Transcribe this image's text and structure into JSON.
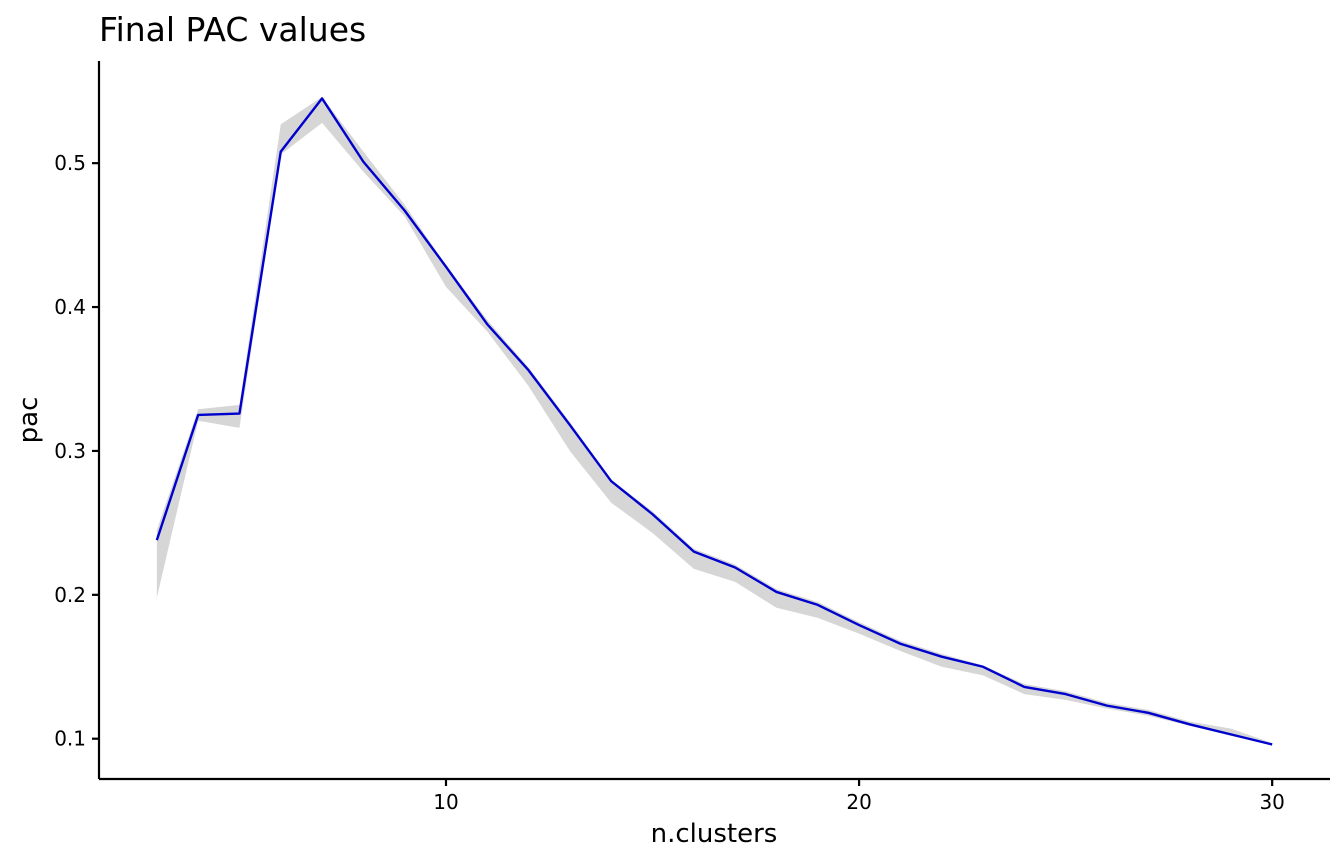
{
  "chart_data": {
    "type": "line",
    "title": "Final PAC values",
    "xlabel": "n.clusters",
    "ylabel": "pac",
    "xlim": [
      1.6,
      31.4
    ],
    "ylim": [
      0.072,
      0.571
    ],
    "x_ticks": [
      10,
      20,
      30
    ],
    "y_ticks": [
      0.1,
      0.2,
      0.3,
      0.4,
      0.5
    ],
    "x_tick_labels": [
      "10",
      "20",
      "30"
    ],
    "y_tick_labels": [
      "0.1",
      "0.2",
      "0.3",
      "0.4",
      "0.5"
    ],
    "grid": false,
    "legend": "none",
    "colors": {
      "line": "#0000cd",
      "ribbon": "#c8c8c8"
    },
    "series": [
      {
        "x": [
          3,
          4,
          5,
          6,
          7,
          8,
          9,
          10,
          11,
          12,
          13,
          14,
          15,
          16,
          17,
          18,
          19,
          20,
          21,
          22,
          23,
          24,
          25,
          26,
          27,
          28,
          29,
          30
        ],
        "y": [
          0.238,
          0.325,
          0.326,
          0.508,
          0.545,
          0.501,
          0.467,
          0.428,
          0.388,
          0.356,
          0.318,
          0.279,
          0.256,
          0.23,
          0.219,
          0.202,
          0.193,
          0.179,
          0.166,
          0.157,
          0.15,
          0.136,
          0.131,
          0.123,
          0.118,
          0.11,
          0.103,
          0.096
        ],
        "lower": [
          0.198,
          0.321,
          0.316,
          0.506,
          0.528,
          0.494,
          0.463,
          0.414,
          0.383,
          0.345,
          0.3,
          0.264,
          0.243,
          0.218,
          0.209,
          0.191,
          0.184,
          0.173,
          0.161,
          0.15,
          0.144,
          0.131,
          0.127,
          0.121,
          0.116,
          0.109,
          0.102,
          0.096
        ],
        "upper": [
          0.245,
          0.329,
          0.332,
          0.527,
          0.546,
          0.508,
          0.471,
          0.429,
          0.391,
          0.358,
          0.32,
          0.28,
          0.258,
          0.232,
          0.221,
          0.204,
          0.195,
          0.181,
          0.168,
          0.159,
          0.151,
          0.138,
          0.133,
          0.125,
          0.12,
          0.112,
          0.107,
          0.097
        ]
      }
    ]
  }
}
